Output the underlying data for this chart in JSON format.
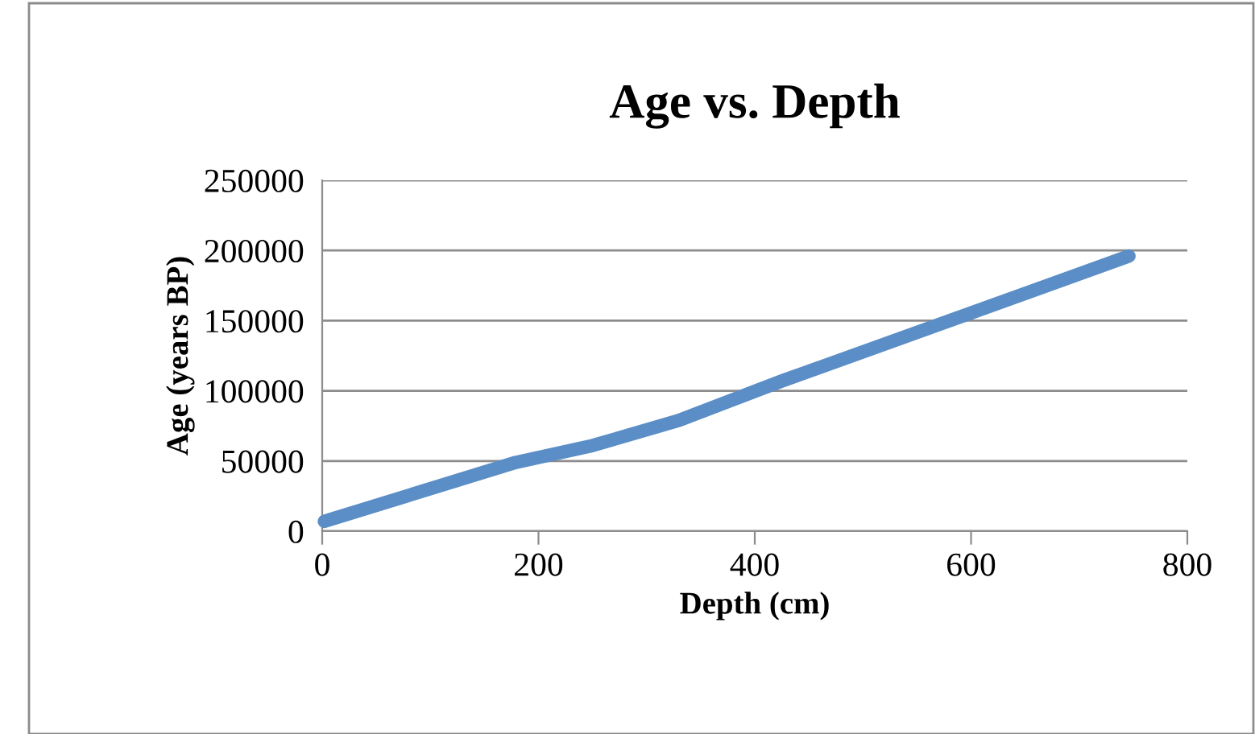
{
  "chart_data": {
    "type": "line",
    "title": "Age vs. Depth",
    "xlabel": "Depth (cm)",
    "ylabel": "Age (years BP)",
    "x": [
      2,
      179,
      250,
      330,
      425,
      746
    ],
    "series": [
      {
        "color": "#5b8ec6",
        "values": [
          7000,
          49000,
          61000,
          79000,
          107000,
          196000
        ]
      }
    ],
    "xlim": [
      0,
      800
    ],
    "xticks": [
      0,
      200,
      400,
      600,
      800
    ],
    "ylim": [
      0,
      250000
    ],
    "yticks": [
      0,
      50000,
      100000,
      150000,
      200000,
      250000
    ],
    "grid": "y",
    "legend": false,
    "marker": "none",
    "line_style": "solid"
  }
}
